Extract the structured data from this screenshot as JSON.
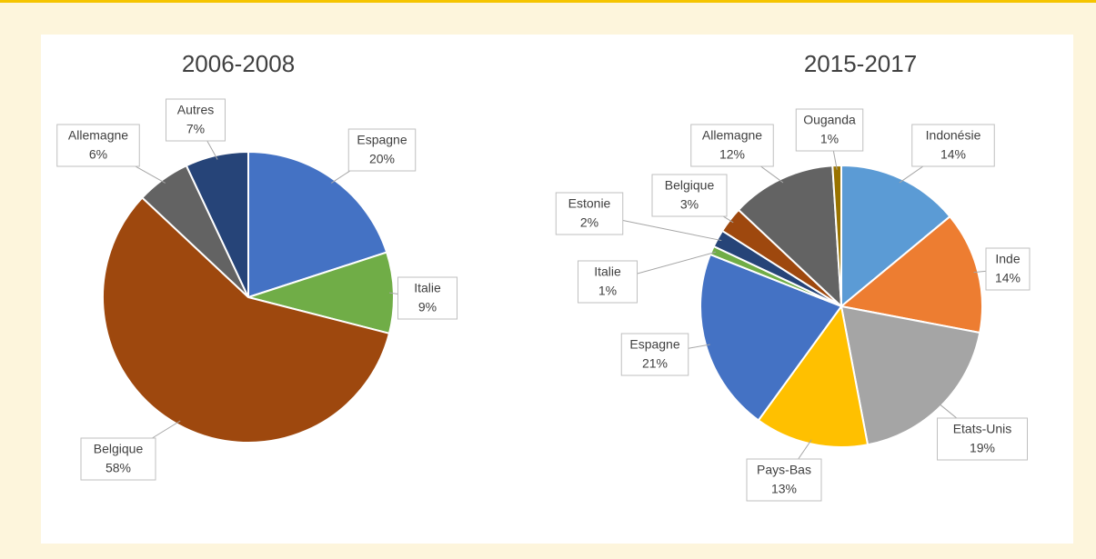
{
  "chart_data": [
    {
      "type": "pie",
      "title": "2006-2008",
      "categories": [
        "Espagne",
        "Italie",
        "Belgique",
        "Allemagne",
        "Autres"
      ],
      "values": [
        20,
        9,
        58,
        6,
        7
      ],
      "value_labels": [
        "20%",
        "9%",
        "58%",
        "6%",
        "7%"
      ],
      "colors": [
        "#4472c4",
        "#70ad47",
        "#9e480e",
        "#636363",
        "#264478"
      ]
    },
    {
      "type": "pie",
      "title": "2015-2017",
      "categories": [
        "Indonésie",
        "Inde",
        "Etats-Unis",
        "Pays-Bas",
        "Espagne",
        "Italie",
        "Estonie",
        "Belgique",
        "Allemagne",
        "Ouganda"
      ],
      "values": [
        14,
        14,
        19,
        13,
        21,
        1,
        2,
        3,
        12,
        1
      ],
      "value_labels": [
        "14%",
        "14%",
        "19%",
        "13%",
        "21%",
        "1%",
        "2%",
        "3%",
        "12%",
        "1%"
      ],
      "colors": [
        "#5b9bd5",
        "#ed7d31",
        "#a5a5a5",
        "#ffc000",
        "#4472c4",
        "#70ad47",
        "#264478",
        "#9e480e",
        "#636363",
        "#997300"
      ]
    }
  ]
}
